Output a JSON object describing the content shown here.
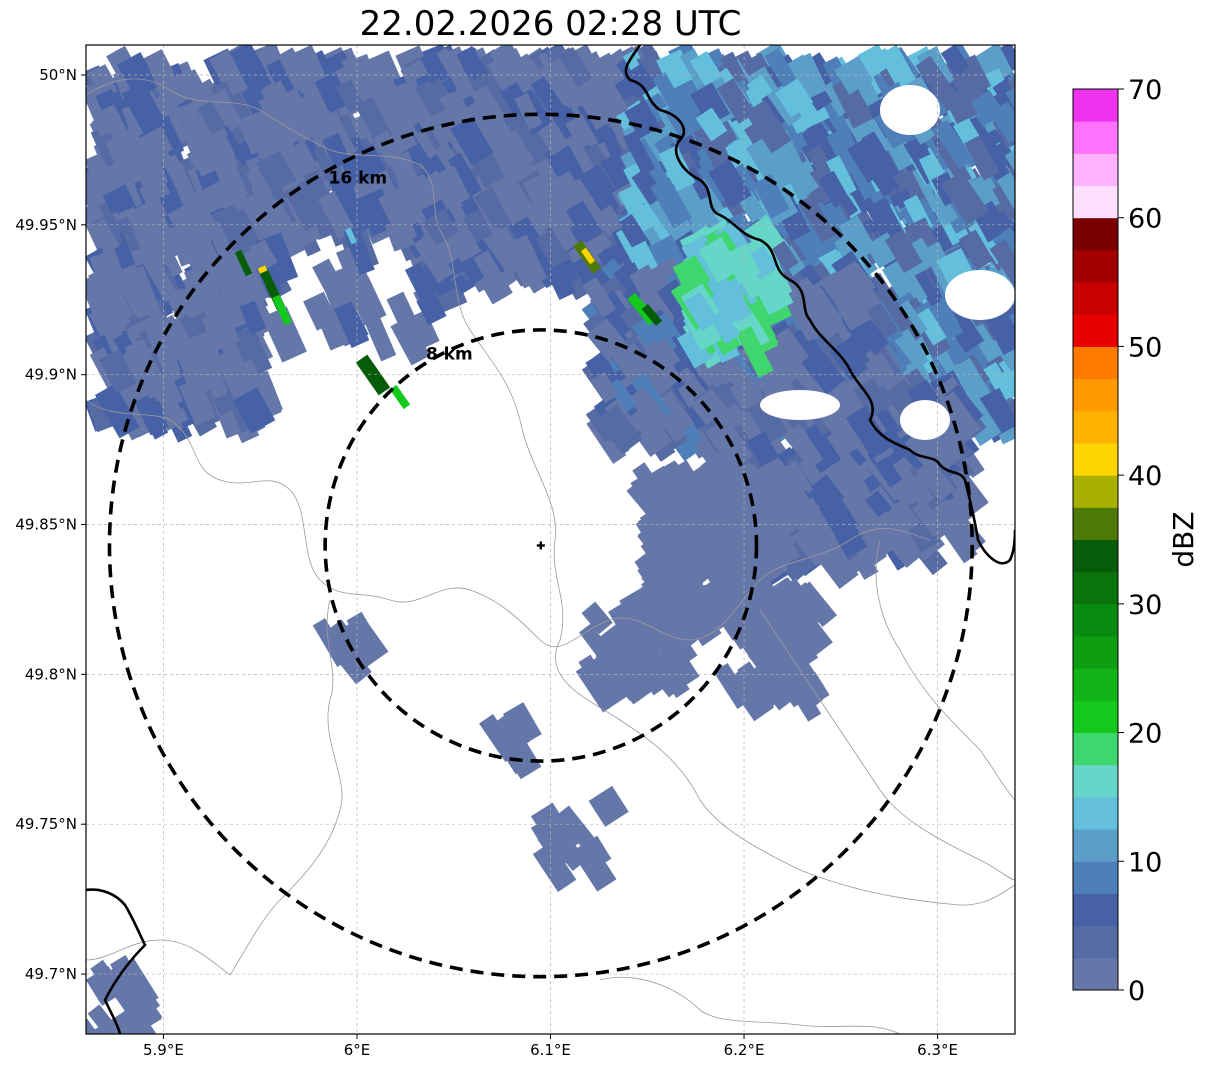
{
  "title": "22.02.2026 02:28 UTC",
  "axes": {
    "lat_ticks": [
      "50°N",
      "49.95°N",
      "49.9°N",
      "49.85°N",
      "49.8°N",
      "49.75°N",
      "49.7°N"
    ],
    "lat_values": [
      50.0,
      49.95,
      49.9,
      49.85,
      49.8,
      49.75,
      49.7
    ],
    "lon_ticks": [
      "5.9°E",
      "6°E",
      "6.1°E",
      "6.2°E",
      "6.3°E"
    ],
    "lon_values": [
      5.9,
      6.0,
      6.1,
      6.2,
      6.3
    ],
    "lon_range": [
      5.86,
      6.34
    ],
    "lat_range": [
      49.68,
      50.01
    ],
    "grid": true
  },
  "radar": {
    "center_lon": 6.095,
    "center_lat": 49.843,
    "rings": [
      {
        "label": "8 km",
        "radius_km": 8
      },
      {
        "label": "16 km",
        "radius_km": 16
      }
    ]
  },
  "colorbar": {
    "label": "dBZ",
    "ticks": [
      "0",
      "10",
      "20",
      "30",
      "40",
      "50",
      "60",
      "70"
    ],
    "min": 0,
    "max": 70,
    "step": 2.5,
    "colors": [
      "#6577a8",
      "#566ba3",
      "#4661a6",
      "#4f7fb8",
      "#5b9fc9",
      "#63bfdb",
      "#66d6c8",
      "#3fd66e",
      "#13c91c",
      "#12b517",
      "#0d9e12",
      "#0a8a0f",
      "#0a730c",
      "#065c08",
      "#4e7a08",
      "#aab002",
      "#ffd500",
      "#ffb300",
      "#ff9900",
      "#ff7b00",
      "#e60000",
      "#c80000",
      "#a30000",
      "#7a0000",
      "#fde0ff",
      "#ffb3ff",
      "#ff73ff",
      "#f033f0"
    ]
  },
  "echo_colors": {
    "weak": "#6577a8",
    "moderate": "#4f7fb8",
    "cyan": "#63bfdb",
    "green": "#13c91c",
    "dark_green": "#065c08",
    "yellow": "#ffd500",
    "orange": "#ff9900"
  }
}
